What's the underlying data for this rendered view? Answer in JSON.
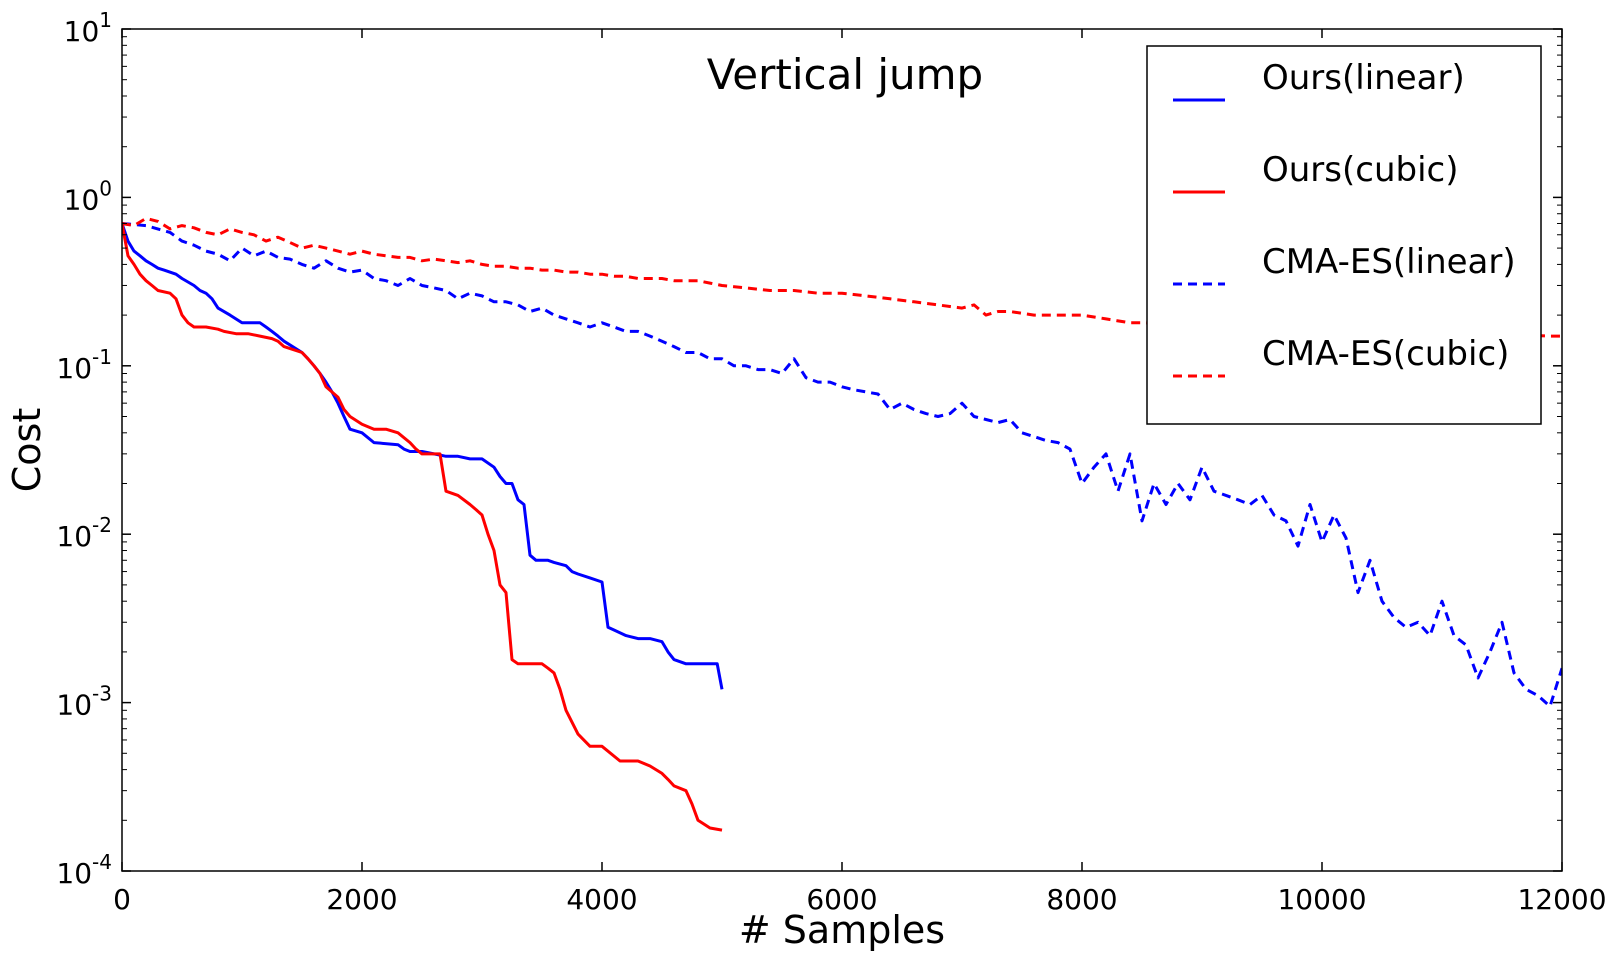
{
  "chart_data": {
    "type": "line",
    "title": "Vertical jump",
    "xlabel": "# Samples",
    "ylabel": "Cost",
    "xlim": [
      0,
      12000
    ],
    "ylim": [
      0.0001,
      10
    ],
    "yscale": "log",
    "grid": false,
    "legend_position": "top-right",
    "x_ticks": [
      0,
      2000,
      4000,
      6000,
      8000,
      10000,
      12000
    ],
    "x_tick_labels": [
      "0",
      "2000",
      "4000",
      "6000",
      "8000",
      "10000",
      "12000"
    ],
    "y_ticks": [
      0.0001,
      0.001,
      0.01,
      0.1,
      1,
      10
    ],
    "y_tick_labels": [
      {
        "base": "10",
        "exp": "-4"
      },
      {
        "base": "10",
        "exp": "-3"
      },
      {
        "base": "10",
        "exp": "-2"
      },
      {
        "base": "10",
        "exp": "-1"
      },
      {
        "base": "10",
        "exp": "0"
      },
      {
        "base": "10",
        "exp": "1"
      }
    ],
    "series": [
      {
        "name": "Ours(linear)",
        "color": "#0000ff",
        "style": "solid",
        "x": [
          0,
          50,
          100,
          150,
          200,
          250,
          300,
          350,
          450,
          500,
          600,
          650,
          700,
          750,
          800,
          900,
          1000,
          1150,
          1200,
          1250,
          1300,
          1350,
          1500,
          1550,
          1600,
          1650,
          1700,
          1750,
          1800,
          1850,
          1900,
          2000,
          2100,
          2300,
          2350,
          2400,
          2500,
          2600,
          2700,
          2800,
          2900,
          3000,
          3100,
          3150,
          3200,
          3250,
          3300,
          3350,
          3400,
          3450,
          3550,
          3600,
          3700,
          3750,
          3800,
          3900,
          4000,
          4050,
          4100,
          4200,
          4300,
          4400,
          4500,
          4550,
          4600,
          4700,
          4800,
          4900,
          4960,
          5000
        ],
        "values": [
          0.7,
          0.55,
          0.48,
          0.45,
          0.42,
          0.4,
          0.38,
          0.37,
          0.35,
          0.33,
          0.3,
          0.28,
          0.27,
          0.25,
          0.22,
          0.2,
          0.18,
          0.18,
          0.17,
          0.16,
          0.15,
          0.14,
          0.12,
          0.11,
          0.1,
          0.09,
          0.08,
          0.07,
          0.06,
          0.05,
          0.042,
          0.04,
          0.035,
          0.034,
          0.032,
          0.031,
          0.031,
          0.03,
          0.029,
          0.029,
          0.028,
          0.028,
          0.025,
          0.022,
          0.02,
          0.02,
          0.016,
          0.015,
          0.0075,
          0.007,
          0.007,
          0.0068,
          0.0065,
          0.006,
          0.0058,
          0.0055,
          0.0052,
          0.0028,
          0.0027,
          0.0025,
          0.0024,
          0.0024,
          0.0023,
          0.002,
          0.0018,
          0.0017,
          0.0017,
          0.0017,
          0.0017,
          0.0012
        ]
      },
      {
        "name": "Ours(cubic)",
        "color": "#ff0000",
        "style": "solid",
        "x": [
          0,
          50,
          100,
          150,
          200,
          250,
          300,
          400,
          450,
          500,
          550,
          600,
          700,
          800,
          850,
          950,
          1050,
          1150,
          1250,
          1300,
          1350,
          1500,
          1550,
          1600,
          1650,
          1700,
          1800,
          1850,
          1900,
          2000,
          2100,
          2200,
          2300,
          2400,
          2450,
          2500,
          2600,
          2650,
          2700,
          2800,
          2900,
          2950,
          3000,
          3050,
          3100,
          3150,
          3200,
          3250,
          3300,
          3350,
          3450,
          3500,
          3550,
          3600,
          3650,
          3700,
          3800,
          3900,
          4000,
          4150,
          4300,
          4400,
          4500,
          4550,
          4600,
          4700,
          4750,
          4800,
          4900,
          5000
        ],
        "values": [
          0.7,
          0.45,
          0.4,
          0.35,
          0.32,
          0.3,
          0.28,
          0.27,
          0.25,
          0.2,
          0.18,
          0.17,
          0.17,
          0.165,
          0.16,
          0.155,
          0.155,
          0.15,
          0.145,
          0.14,
          0.13,
          0.12,
          0.11,
          0.1,
          0.09,
          0.075,
          0.065,
          0.055,
          0.05,
          0.045,
          0.042,
          0.042,
          0.04,
          0.035,
          0.032,
          0.03,
          0.03,
          0.03,
          0.018,
          0.017,
          0.015,
          0.014,
          0.013,
          0.01,
          0.008,
          0.005,
          0.0045,
          0.0018,
          0.0017,
          0.0017,
          0.0017,
          0.0017,
          0.0016,
          0.0015,
          0.0012,
          0.0009,
          0.00065,
          0.00055,
          0.00055,
          0.00045,
          0.00045,
          0.00042,
          0.00038,
          0.00035,
          0.00032,
          0.0003,
          0.00025,
          0.0002,
          0.00018,
          0.000175
        ]
      },
      {
        "name": "CMA-ES(linear)",
        "color": "#0000ff",
        "style": "dashed",
        "x": [
          0,
          200,
          400,
          500,
          600,
          700,
          800,
          900,
          1000,
          1100,
          1200,
          1300,
          1400,
          1500,
          1600,
          1700,
          1800,
          1900,
          2000,
          2100,
          2200,
          2300,
          2400,
          2500,
          2600,
          2700,
          2800,
          2900,
          3000,
          3100,
          3200,
          3300,
          3400,
          3500,
          3600,
          3700,
          3800,
          3900,
          4000,
          4100,
          4200,
          4300,
          4400,
          4500,
          4600,
          4700,
          4800,
          4900,
          5000,
          5100,
          5200,
          5300,
          5400,
          5500,
          5600,
          5700,
          5800,
          5900,
          6000,
          6100,
          6200,
          6300,
          6400,
          6500,
          6600,
          6700,
          6800,
          6900,
          7000,
          7100,
          7200,
          7300,
          7400,
          7500,
          7600,
          7700,
          7800,
          7900,
          8000,
          8100,
          8200,
          8300,
          8400,
          8500,
          8600,
          8700,
          8800,
          8900,
          9000,
          9100,
          9200,
          9300,
          9400,
          9500,
          9600,
          9700,
          9800,
          9900,
          10000,
          10100,
          10200,
          10300,
          10400,
          10500,
          10600,
          10700,
          10800,
          10900,
          11000,
          11100,
          11200,
          11300,
          11400,
          11500,
          11600,
          11700,
          11800,
          11900,
          12000
        ],
        "values": [
          0.7,
          0.68,
          0.62,
          0.55,
          0.52,
          0.48,
          0.46,
          0.42,
          0.5,
          0.45,
          0.48,
          0.44,
          0.43,
          0.4,
          0.38,
          0.42,
          0.38,
          0.36,
          0.37,
          0.33,
          0.32,
          0.3,
          0.33,
          0.3,
          0.29,
          0.28,
          0.25,
          0.27,
          0.26,
          0.24,
          0.24,
          0.23,
          0.21,
          0.22,
          0.2,
          0.19,
          0.18,
          0.17,
          0.18,
          0.17,
          0.16,
          0.16,
          0.15,
          0.14,
          0.13,
          0.12,
          0.12,
          0.11,
          0.11,
          0.1,
          0.1,
          0.095,
          0.095,
          0.09,
          0.11,
          0.085,
          0.08,
          0.08,
          0.075,
          0.072,
          0.07,
          0.068,
          0.055,
          0.06,
          0.055,
          0.052,
          0.05,
          0.052,
          0.06,
          0.05,
          0.048,
          0.046,
          0.048,
          0.04,
          0.038,
          0.036,
          0.035,
          0.032,
          0.02,
          0.025,
          0.03,
          0.018,
          0.03,
          0.012,
          0.02,
          0.015,
          0.02,
          0.016,
          0.025,
          0.018,
          0.017,
          0.016,
          0.015,
          0.017,
          0.013,
          0.012,
          0.0085,
          0.015,
          0.009,
          0.013,
          0.0095,
          0.0045,
          0.007,
          0.004,
          0.0032,
          0.0028,
          0.003,
          0.0025,
          0.004,
          0.0025,
          0.0022,
          0.0014,
          0.002,
          0.003,
          0.0015,
          0.0012,
          0.0011,
          0.00095,
          0.0016
        ]
      },
      {
        "name": "CMA-ES(cubic)",
        "color": "#ff0000",
        "style": "dashed",
        "x": [
          0,
          100,
          200,
          300,
          400,
          500,
          600,
          700,
          800,
          900,
          1000,
          1100,
          1200,
          1300,
          1400,
          1500,
          1600,
          1700,
          1800,
          1900,
          2000,
          2100,
          2200,
          2300,
          2400,
          2500,
          2600,
          2700,
          2800,
          2900,
          3000,
          3100,
          3200,
          3300,
          3400,
          3500,
          3600,
          3700,
          3800,
          3900,
          4000,
          4100,
          4200,
          4300,
          4400,
          4500,
          4600,
          4700,
          4800,
          4900,
          5000,
          5200,
          5400,
          5600,
          5800,
          6000,
          6200,
          6400,
          6600,
          6800,
          7000,
          7100,
          7200,
          7300,
          7400,
          7600,
          7800,
          8000,
          8200,
          8400,
          8500,
          11900,
          12000
        ],
        "values": [
          0.7,
          0.68,
          0.75,
          0.72,
          0.65,
          0.68,
          0.66,
          0.62,
          0.6,
          0.65,
          0.62,
          0.6,
          0.55,
          0.58,
          0.54,
          0.5,
          0.52,
          0.5,
          0.48,
          0.46,
          0.48,
          0.46,
          0.45,
          0.44,
          0.44,
          0.42,
          0.43,
          0.42,
          0.41,
          0.42,
          0.4,
          0.39,
          0.39,
          0.38,
          0.38,
          0.37,
          0.37,
          0.36,
          0.36,
          0.35,
          0.35,
          0.34,
          0.34,
          0.33,
          0.33,
          0.33,
          0.32,
          0.32,
          0.32,
          0.31,
          0.3,
          0.29,
          0.28,
          0.28,
          0.27,
          0.27,
          0.26,
          0.25,
          0.24,
          0.23,
          0.22,
          0.23,
          0.2,
          0.21,
          0.21,
          0.2,
          0.2,
          0.2,
          0.19,
          0.18,
          0.18,
          0.15,
          0.15
        ]
      }
    ]
  }
}
